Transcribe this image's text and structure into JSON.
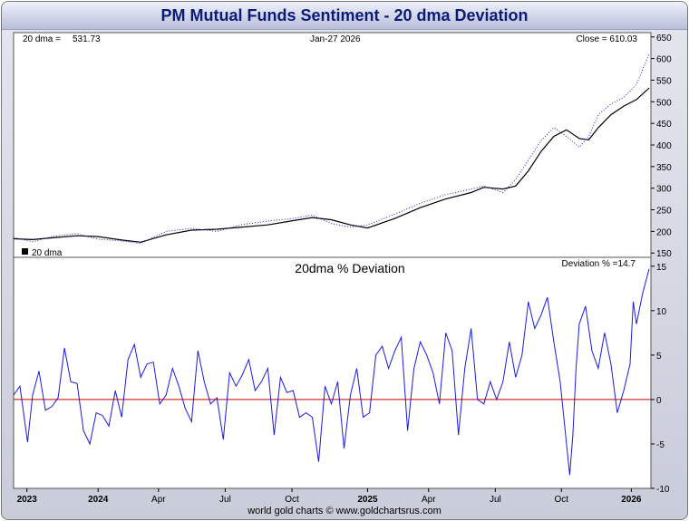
{
  "title": "PM Mutual Funds Sentiment - 20 dma Deviation",
  "footer": "world gold charts © www.goldchartsrus.com",
  "colors": {
    "dma": "#000000",
    "close": "#1a1ad6",
    "deviation": "#1a1ae6",
    "zero": "#c00000"
  },
  "chart_data": [
    {
      "type": "line",
      "panel": "price",
      "header_left_label": "20 dma =",
      "header_left_value": "531.73",
      "header_date": "Jan-27  2026",
      "header_right": "Close = 610.03",
      "legend": "20 dma",
      "ylim": [
        140,
        660
      ],
      "yticks": [
        150,
        200,
        250,
        300,
        350,
        400,
        450,
        500,
        550,
        600,
        650
      ],
      "x_ticks": [
        "2023",
        "2024",
        "Apr",
        "Jul",
        "Oct",
        "2025",
        "Apr",
        "Jul",
        "Oct",
        "2026"
      ],
      "x_tick_pos": [
        0.021,
        0.133,
        0.228,
        0.333,
        0.438,
        0.557,
        0.653,
        0.758,
        0.862,
        0.972
      ],
      "series": [
        {
          "name": "20 dma",
          "x": [
            0,
            0.03,
            0.06,
            0.1,
            0.133,
            0.17,
            0.2,
            0.24,
            0.28,
            0.32,
            0.36,
            0.4,
            0.44,
            0.47,
            0.5,
            0.53,
            0.557,
            0.6,
            0.64,
            0.68,
            0.72,
            0.74,
            0.77,
            0.79,
            0.81,
            0.83,
            0.85,
            0.87,
            0.89,
            0.905,
            0.92,
            0.94,
            0.96,
            0.98,
            1.0
          ],
          "values": [
            183,
            181,
            185,
            190,
            188,
            180,
            175,
            192,
            203,
            205,
            210,
            215,
            225,
            232,
            227,
            215,
            208,
            230,
            255,
            275,
            290,
            302,
            298,
            305,
            340,
            385,
            420,
            435,
            415,
            412,
            440,
            470,
            490,
            505,
            531.73
          ]
        },
        {
          "name": "Close",
          "x": [
            0,
            0.03,
            0.06,
            0.1,
            0.133,
            0.17,
            0.2,
            0.24,
            0.28,
            0.32,
            0.36,
            0.4,
            0.44,
            0.47,
            0.5,
            0.53,
            0.557,
            0.6,
            0.64,
            0.68,
            0.72,
            0.74,
            0.77,
            0.79,
            0.81,
            0.83,
            0.85,
            0.87,
            0.89,
            0.905,
            0.92,
            0.94,
            0.96,
            0.98,
            1.0
          ],
          "values": [
            186,
            176,
            188,
            195,
            182,
            178,
            172,
            200,
            207,
            200,
            216,
            224,
            230,
            238,
            218,
            210,
            215,
            240,
            265,
            285,
            298,
            305,
            290,
            320,
            365,
            410,
            440,
            420,
            395,
            420,
            470,
            495,
            510,
            540,
            610.03
          ]
        }
      ]
    },
    {
      "type": "line",
      "panel": "deviation",
      "title": "20dma  %  Deviation",
      "header_right": "Deviation % =14.7",
      "ylim": [
        -10,
        16
      ],
      "yticks": [
        -10,
        -5,
        0,
        5,
        10,
        15
      ],
      "series": [
        {
          "name": "Deviation %",
          "x": [
            0,
            0.01,
            0.022,
            0.03,
            0.04,
            0.05,
            0.06,
            0.07,
            0.08,
            0.09,
            0.1,
            0.11,
            0.12,
            0.13,
            0.14,
            0.15,
            0.16,
            0.17,
            0.18,
            0.19,
            0.2,
            0.21,
            0.22,
            0.23,
            0.24,
            0.25,
            0.26,
            0.27,
            0.28,
            0.29,
            0.3,
            0.31,
            0.32,
            0.33,
            0.34,
            0.35,
            0.36,
            0.37,
            0.38,
            0.39,
            0.4,
            0.41,
            0.42,
            0.43,
            0.44,
            0.45,
            0.46,
            0.47,
            0.48,
            0.49,
            0.5,
            0.51,
            0.52,
            0.53,
            0.54,
            0.55,
            0.56,
            0.57,
            0.58,
            0.59,
            0.6,
            0.61,
            0.62,
            0.63,
            0.64,
            0.65,
            0.66,
            0.67,
            0.68,
            0.69,
            0.7,
            0.71,
            0.72,
            0.73,
            0.74,
            0.75,
            0.76,
            0.77,
            0.78,
            0.79,
            0.8,
            0.81,
            0.82,
            0.83,
            0.84,
            0.85,
            0.86,
            0.87,
            0.875,
            0.88,
            0.885,
            0.89,
            0.9,
            0.91,
            0.92,
            0.93,
            0.94,
            0.95,
            0.96,
            0.97,
            0.975,
            0.98,
            0.99,
            1.0
          ],
          "values": [
            0.5,
            1.5,
            -4.8,
            0.5,
            3.2,
            -1.2,
            -0.8,
            0.2,
            5.8,
            2.0,
            1.8,
            -3.5,
            -5.0,
            -1.5,
            -1.8,
            -3.0,
            1.0,
            -2.0,
            4.5,
            6.2,
            2.5,
            4.0,
            4.2,
            -0.5,
            0.5,
            3.5,
            1.5,
            -1.0,
            -2.5,
            5.5,
            2.0,
            -0.5,
            0.2,
            -4.5,
            3.0,
            1.5,
            2.8,
            4.5,
            1.0,
            2.0,
            3.5,
            -4.0,
            2.5,
            0.8,
            1.0,
            -2.0,
            -1.5,
            -2.0,
            -7.0,
            1.5,
            -0.5,
            2.0,
            -5.5,
            0.5,
            3.5,
            -2.0,
            -1.5,
            5.0,
            6.0,
            3.5,
            5.5,
            7.0,
            -3.5,
            3.5,
            6.5,
            5.0,
            3.0,
            -0.5,
            7.5,
            5.5,
            -4.0,
            3.5,
            8.0,
            0.0,
            -0.5,
            2.0,
            0.0,
            2.0,
            6.5,
            2.5,
            5.0,
            11.0,
            8.0,
            9.5,
            11.5,
            6.5,
            2.0,
            -5.0,
            -8.5,
            -4.0,
            3.5,
            8.5,
            10.5,
            5.5,
            3.5,
            7.5,
            4.0,
            -1.5,
            1.0,
            4.0,
            11.0,
            8.5,
            12.0,
            14.7
          ]
        }
      ]
    }
  ]
}
